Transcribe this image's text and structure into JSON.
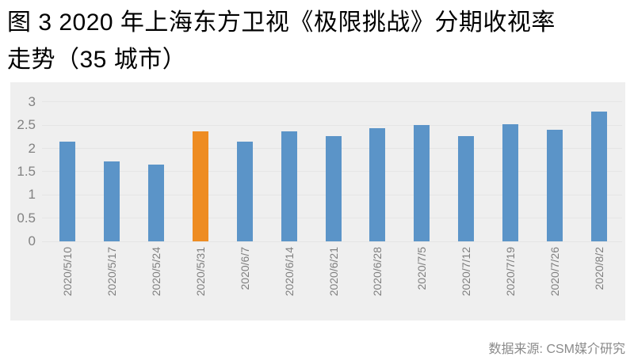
{
  "header": {
    "title_line1": "图 3 2020 年上海东方卫视《极限挑战》分期收视率",
    "title_line2": "走势（35 城市）"
  },
  "source_note": "数据来源: CSM媒介研究",
  "chart_data": {
    "type": "bar",
    "title": "图 3 2020 年上海东方卫视《极限挑战》分期收视率走势（35 城市）",
    "categories": [
      "2020/5/10",
      "2020/5/17",
      "2020/5/24",
      "2020/5/31",
      "2020/6/7",
      "2020/6/14",
      "2020/6/21",
      "2020/6/28",
      "2020/7/5",
      "2020/7/12",
      "2020/7/19",
      "2020/7/26",
      "2020/8/2"
    ],
    "values": [
      2.15,
      1.72,
      1.65,
      2.37,
      2.15,
      2.37,
      2.27,
      2.44,
      2.5,
      2.26,
      2.52,
      2.41,
      2.8
    ],
    "highlight_index": 3,
    "highlight_category": "2020/5/31",
    "bar_color": "#5b94c8",
    "highlight_color": "#ee8c22",
    "yticks": [
      0,
      0.5,
      1,
      1.5,
      2,
      2.5,
      3
    ],
    "ylim": [
      0,
      3
    ],
    "xlabel": "",
    "ylabel": "",
    "grid": true,
    "legend": "none",
    "plot_bg": "#efefef",
    "gridline_color": "#e5e5e5",
    "tick_label_color": "#7f7f7f"
  }
}
